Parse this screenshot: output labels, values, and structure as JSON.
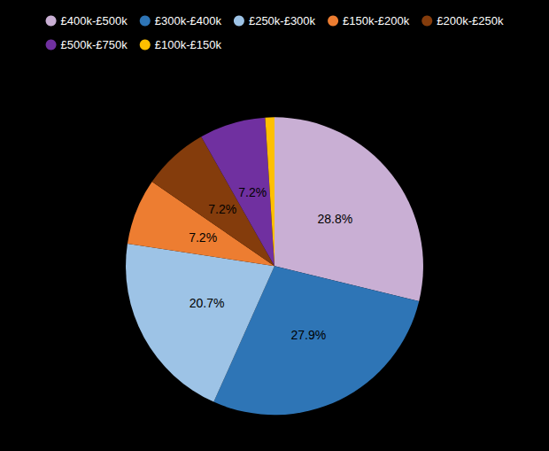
{
  "chart_data": {
    "type": "pie",
    "categories": [
      "£400k-£500k",
      "£300k-£400k",
      "£250k-£300k",
      "£150k-£200k",
      "£200k-£250k",
      "£500k-£750k",
      "£100k-£150k"
    ],
    "values": [
      28.8,
      27.9,
      20.7,
      7.2,
      7.2,
      7.2,
      1.0
    ],
    "value_labels": [
      "28.8%",
      "27.9%",
      "20.7%",
      "7.2%",
      "7.2%",
      "7.2%",
      null
    ],
    "colors": [
      "#c9afd4",
      "#2e75b6",
      "#9dc3e6",
      "#ed7d31",
      "#843c0c",
      "#7030a0",
      "#ffc000"
    ],
    "data_labels": true,
    "legend": "top"
  }
}
